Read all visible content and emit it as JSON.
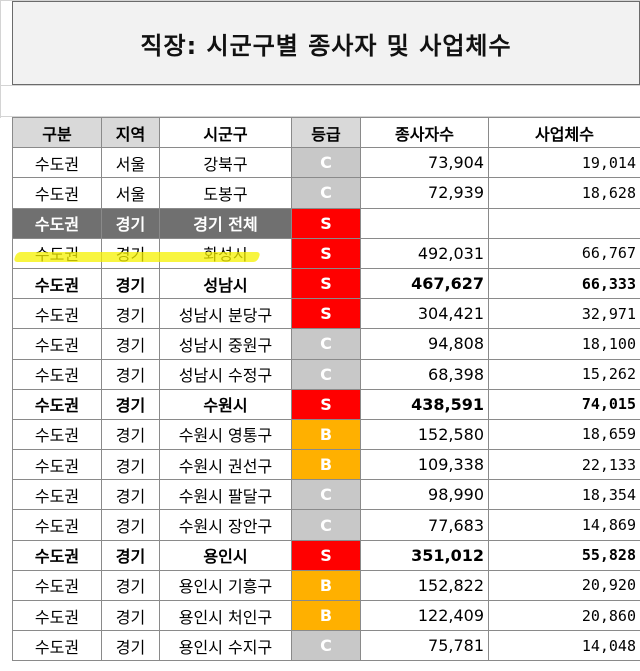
{
  "title": "직장: 시군구별 종사자 및 사업체수",
  "headers": [
    "구분",
    "지역",
    "시군구",
    "등급",
    "종사자수",
    "사업체수"
  ],
  "colors": {
    "grade_S": "#ff0000",
    "grade_B": "#ffb000",
    "grade_C": "#c8c8c8",
    "group_row": "#707070",
    "highlight": "#f5f200"
  },
  "rows": [
    {
      "type": "normal",
      "gubun": "수도권",
      "region": "서울",
      "district": "강북구",
      "grade": "C",
      "workers": "73,904",
      "businesses": "19,014"
    },
    {
      "type": "normal",
      "gubun": "수도권",
      "region": "서울",
      "district": "도봉구",
      "grade": "C",
      "workers": "72,939",
      "businesses": "18,628"
    },
    {
      "type": "group",
      "gubun": "수도권",
      "region": "경기",
      "district": "경기 전체",
      "grade": "S",
      "workers": "",
      "businesses": ""
    },
    {
      "type": "highlight",
      "gubun": "수도권",
      "region": "경기",
      "district": "화성시",
      "grade": "S",
      "workers": "492,031",
      "businesses": "66,767"
    },
    {
      "type": "bold",
      "gubun": "수도권",
      "region": "경기",
      "district": "성남시",
      "grade": "S",
      "workers": "467,627",
      "businesses": "66,333"
    },
    {
      "type": "normal",
      "gubun": "수도권",
      "region": "경기",
      "district": "성남시 분당구",
      "grade": "S",
      "workers": "304,421",
      "businesses": "32,971"
    },
    {
      "type": "normal",
      "gubun": "수도권",
      "region": "경기",
      "district": "성남시 중원구",
      "grade": "C",
      "workers": "94,808",
      "businesses": "18,100"
    },
    {
      "type": "normal",
      "gubun": "수도권",
      "region": "경기",
      "district": "성남시 수정구",
      "grade": "C",
      "workers": "68,398",
      "businesses": "15,262"
    },
    {
      "type": "bold",
      "gubun": "수도권",
      "region": "경기",
      "district": "수원시",
      "grade": "S",
      "workers": "438,591",
      "businesses": "74,015"
    },
    {
      "type": "normal",
      "gubun": "수도권",
      "region": "경기",
      "district": "수원시 영통구",
      "grade": "B",
      "workers": "152,580",
      "businesses": "18,659"
    },
    {
      "type": "normal",
      "gubun": "수도권",
      "region": "경기",
      "district": "수원시 권선구",
      "grade": "B",
      "workers": "109,338",
      "businesses": "22,133"
    },
    {
      "type": "normal",
      "gubun": "수도권",
      "region": "경기",
      "district": "수원시 팔달구",
      "grade": "C",
      "workers": "98,990",
      "businesses": "18,354"
    },
    {
      "type": "normal",
      "gubun": "수도권",
      "region": "경기",
      "district": "수원시 장안구",
      "grade": "C",
      "workers": "77,683",
      "businesses": "14,869"
    },
    {
      "type": "bold",
      "gubun": "수도권",
      "region": "경기",
      "district": "용인시",
      "grade": "S",
      "workers": "351,012",
      "businesses": "55,828"
    },
    {
      "type": "normal",
      "gubun": "수도권",
      "region": "경기",
      "district": "용인시 기흥구",
      "grade": "B",
      "workers": "152,822",
      "businesses": "20,920"
    },
    {
      "type": "normal",
      "gubun": "수도권",
      "region": "경기",
      "district": "용인시 처인구",
      "grade": "B",
      "workers": "122,409",
      "businesses": "20,860"
    },
    {
      "type": "normal",
      "gubun": "수도권",
      "region": "경기",
      "district": "용인시 수지구",
      "grade": "C",
      "workers": "75,781",
      "businesses": "14,048"
    }
  ]
}
